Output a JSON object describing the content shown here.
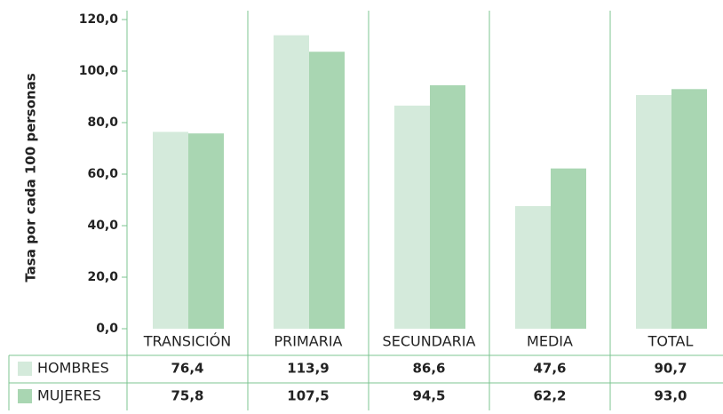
{
  "chart_data": {
    "type": "bar",
    "y_label": "Tasa por cada 100 personas",
    "categories": [
      "TRANSICIÓN",
      "PRIMARIA",
      "SECUNDARIA",
      "MEDIA",
      "TOTAL"
    ],
    "series": [
      {
        "name": "HOMBRES",
        "color": "#d4eadb",
        "values": [
          76.4,
          113.9,
          86.6,
          47.6,
          90.7
        ],
        "value_labels": [
          "76,4",
          "113,9",
          "86,6",
          "47,6",
          "90,7"
        ]
      },
      {
        "name": "MUJERES",
        "color": "#a9d6b2",
        "values": [
          75.8,
          107.5,
          94.5,
          62.2,
          93.0
        ],
        "value_labels": [
          "75,8",
          "107,5",
          "94,5",
          "62,2",
          "93,0"
        ]
      }
    ],
    "ylim": [
      0,
      120
    ],
    "yticks": [
      {
        "value": 0,
        "label": "0,0"
      },
      {
        "value": 20,
        "label": "20,0"
      },
      {
        "value": 40,
        "label": "40,0"
      },
      {
        "value": 60,
        "label": "60,0"
      },
      {
        "value": 80,
        "label": "80,0"
      },
      {
        "value": 100,
        "label": "100,0"
      },
      {
        "value": 120,
        "label": "120,0"
      }
    ]
  }
}
